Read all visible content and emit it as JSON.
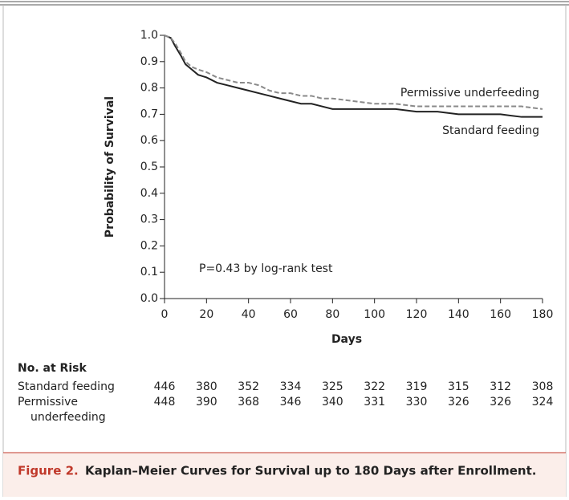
{
  "chart_data": {
    "type": "line",
    "x_label": "Days",
    "y_label": "Probability of Survival",
    "annotation": "P=0.43 by log-rank test",
    "x": [
      0,
      3,
      5,
      8,
      10,
      13,
      16,
      20,
      25,
      30,
      35,
      40,
      45,
      50,
      55,
      60,
      65,
      70,
      75,
      80,
      90,
      100,
      110,
      120,
      130,
      140,
      150,
      160,
      170,
      180
    ],
    "series": [
      {
        "name": "Standard feeding",
        "color": "#222222",
        "dashed": false,
        "values": [
          1.0,
          0.99,
          0.96,
          0.92,
          0.89,
          0.87,
          0.85,
          0.84,
          0.82,
          0.81,
          0.8,
          0.79,
          0.78,
          0.77,
          0.76,
          0.75,
          0.74,
          0.74,
          0.73,
          0.72,
          0.72,
          0.72,
          0.72,
          0.71,
          0.71,
          0.7,
          0.7,
          0.7,
          0.69,
          0.69
        ]
      },
      {
        "name": "Permissive underfeeding",
        "color": "#8a8a8a",
        "dashed": true,
        "values": [
          1.0,
          0.99,
          0.97,
          0.93,
          0.9,
          0.88,
          0.87,
          0.86,
          0.84,
          0.83,
          0.82,
          0.82,
          0.81,
          0.79,
          0.78,
          0.78,
          0.77,
          0.77,
          0.76,
          0.76,
          0.75,
          0.74,
          0.74,
          0.73,
          0.73,
          0.73,
          0.73,
          0.73,
          0.73,
          0.72
        ]
      }
    ],
    "xlim": [
      0,
      180
    ],
    "ylim": [
      0,
      1
    ],
    "xticks": [
      0,
      20,
      40,
      60,
      80,
      100,
      120,
      140,
      160,
      180
    ],
    "yticks": [
      {
        "value": 0,
        "label": "0.0"
      },
      0.1,
      0.2,
      0.3,
      0.4,
      0.5,
      0.6,
      0.7,
      0.8,
      0.9,
      {
        "value": 1,
        "label": "1.0"
      }
    ],
    "grid": false
  },
  "risk_table": {
    "title": "No. at Risk",
    "rows": [
      {
        "label_lines": [
          "Standard feeding"
        ],
        "values": [
          446,
          380,
          352,
          334,
          325,
          322,
          319,
          315,
          312,
          308
        ]
      },
      {
        "label_lines": [
          "Permissive",
          "underfeeding"
        ],
        "values": [
          448,
          390,
          368,
          346,
          340,
          331,
          330,
          326,
          326,
          324
        ]
      }
    ]
  },
  "caption": {
    "label": "Figure 2.",
    "text": "Kaplan–Meier Curves for Survival up to 180 Days after Enrollment."
  }
}
